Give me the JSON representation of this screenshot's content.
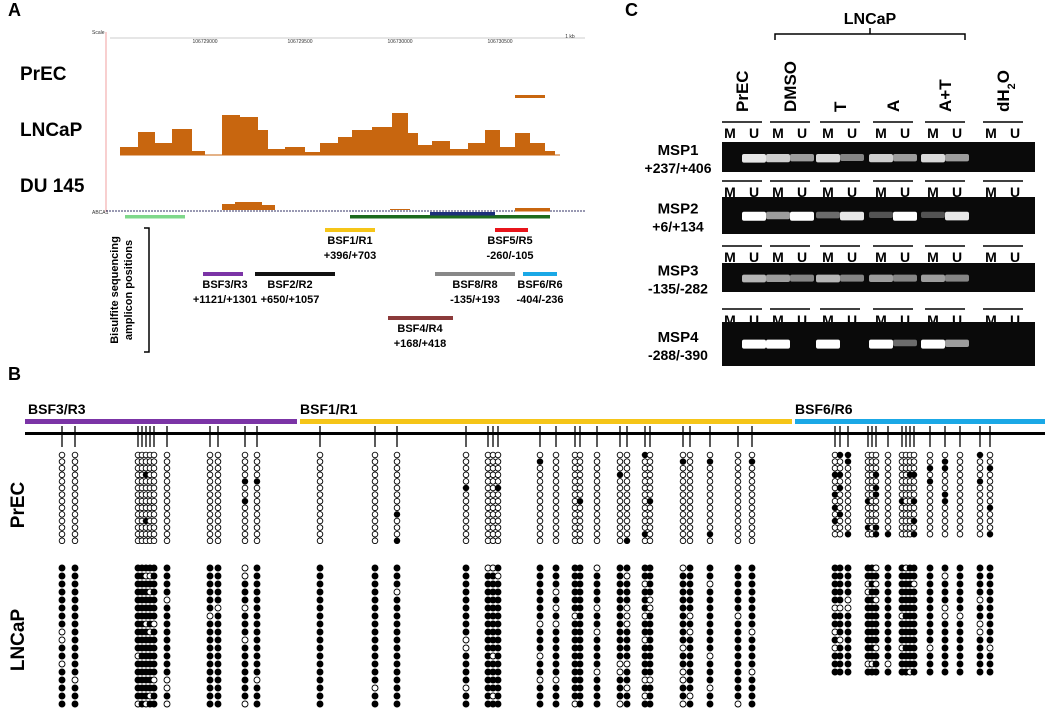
{
  "panel_labels": [
    "A",
    "B",
    "C"
  ],
  "panel_a": {
    "track_labels": [
      "PrEC",
      "LNCaP",
      "DU 145"
    ],
    "browser_labels": [
      "Scale",
      "1 kb",
      "106729000",
      "106729500",
      "106730000",
      "106730500",
      "ABCA1"
    ],
    "caption": [
      "Bisulfite sequencing",
      "amplicon positions"
    ],
    "amplicons": [
      {
        "name": "BSF1/R1",
        "position": "+396/+703"
      },
      {
        "name": "BSF5/R5",
        "position": "-260/-105"
      },
      {
        "name": "BSF3/R3",
        "position": "+1121/+1301"
      },
      {
        "name": "BSF2/R2",
        "position": "+650/+1057"
      },
      {
        "name": "BSF8/R8",
        "position": "-135/+193"
      },
      {
        "name": "BSF6/R6",
        "position": "-404/-236"
      },
      {
        "name": "BSF4/R4",
        "position": "+168/+418"
      }
    ]
  },
  "panel_c": {
    "group": "LNCaP",
    "lanes": [
      "PrEC",
      "DMSO",
      "T",
      "A",
      "A+T"
    ],
    "water": {
      "base": "dH",
      "sub": "2",
      "end": "O"
    },
    "lane_sublabels": [
      "M",
      "U"
    ],
    "assays": [
      {
        "name": "MSP1",
        "position": "+237/+406"
      },
      {
        "name": "MSP2",
        "position": "+6/+134"
      },
      {
        "name": "MSP3",
        "position": "-135/-282"
      },
      {
        "name": "MSP4",
        "position": "-288/-390"
      }
    ]
  },
  "panel_b": {
    "amplicons": [
      "BSF3/R3",
      "BSF1/R1",
      "BSF6/R6"
    ],
    "samples": [
      "PrEC",
      "LNCaP"
    ]
  }
}
